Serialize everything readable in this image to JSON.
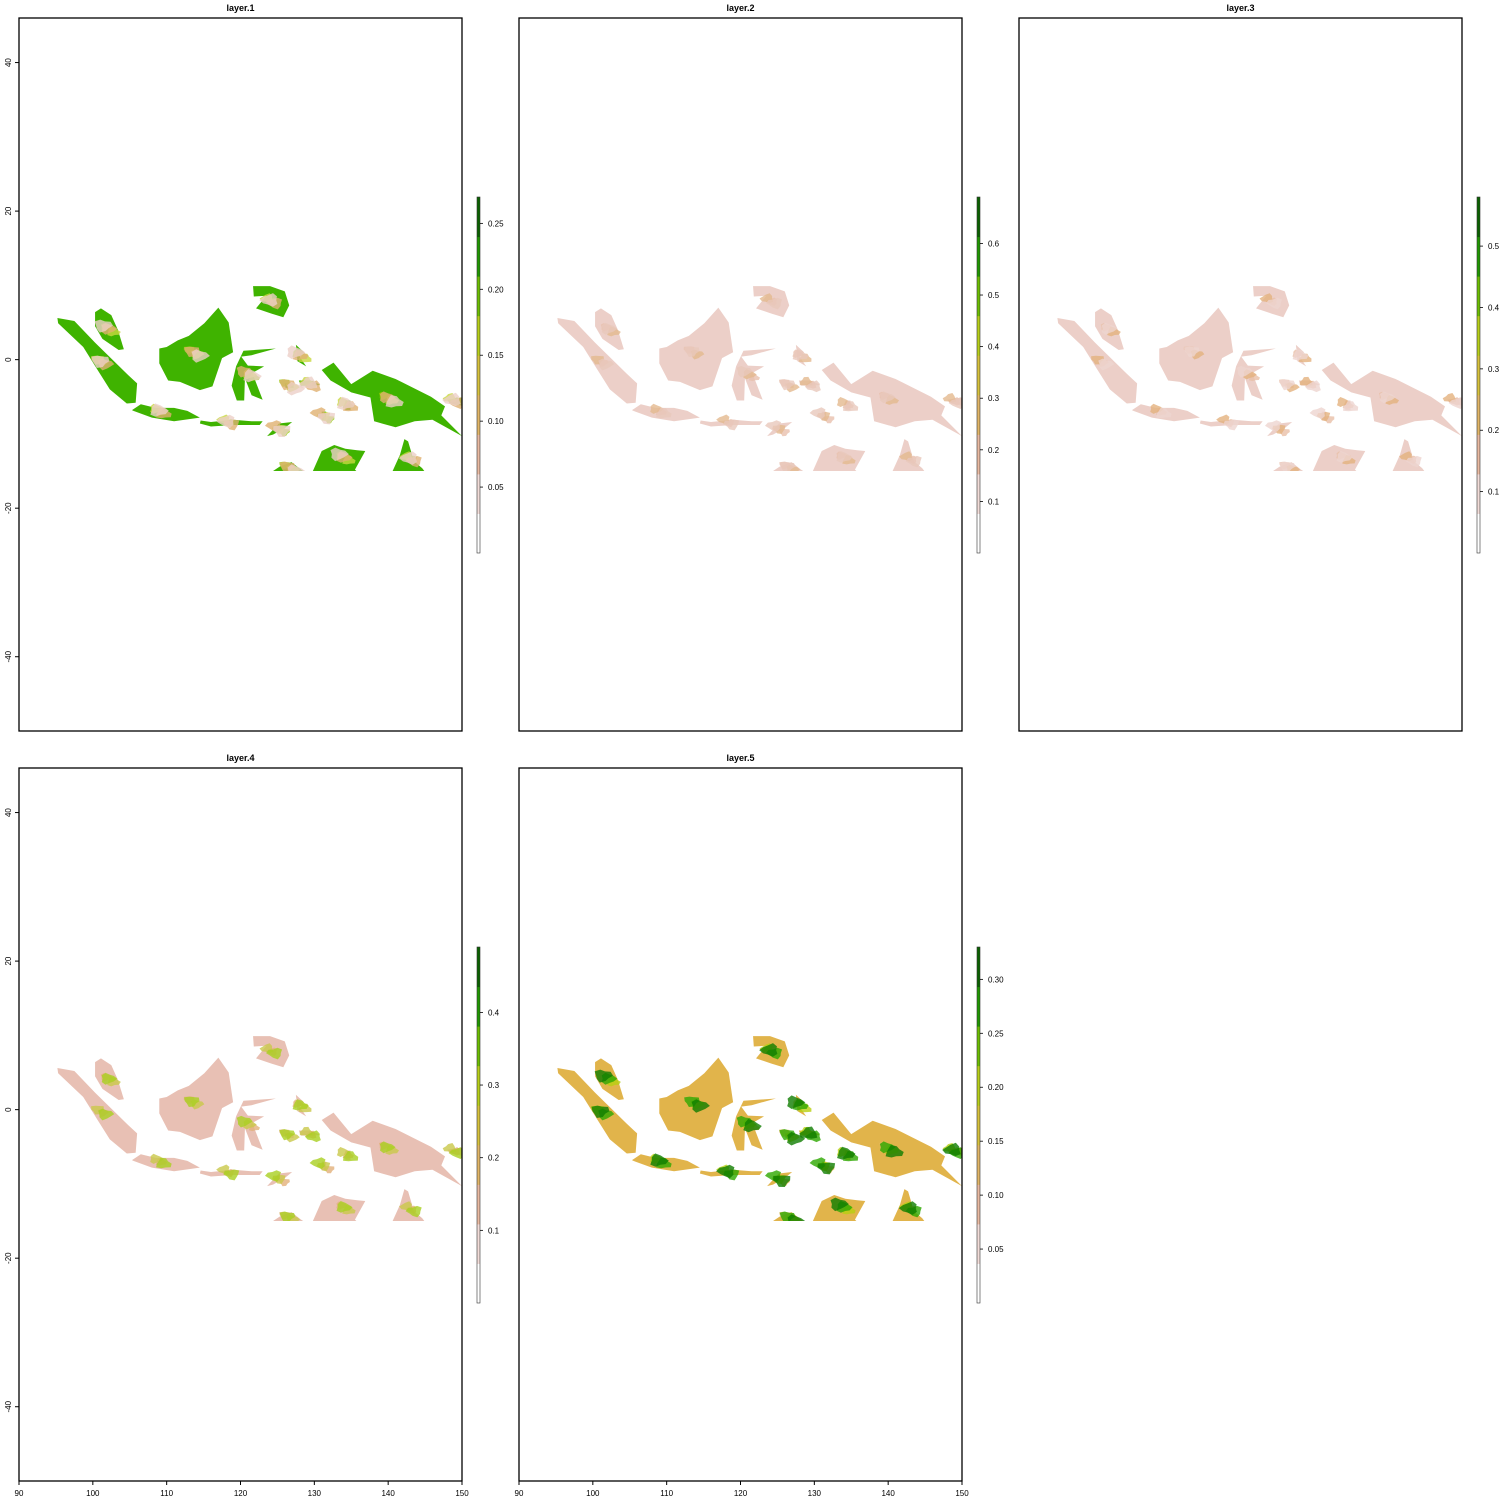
{
  "figure": {
    "x_ticks": [
      90,
      100,
      110,
      120,
      130,
      140,
      150
    ],
    "y_ticks": [
      40,
      20,
      0,
      -20,
      -40
    ],
    "xlim": [
      90,
      150
    ],
    "ylim": [
      -50,
      46
    ],
    "panels": [
      {
        "id": "p1",
        "title": "layer.1",
        "legend_max": 0.27,
        "legend_ticks": [
          0.05,
          0.1,
          0.15,
          0.2,
          0.25
        ],
        "legend_labels": [
          "0.05",
          "0.10",
          "0.15",
          "0.20",
          "0.25"
        ],
        "show_y_axis": true,
        "show_x_axis": false,
        "fill_colors": [
          "#3fb300",
          "#8fd000",
          "#c8d840",
          "#e0b070",
          "#eccfc8"
        ]
      },
      {
        "id": "p2",
        "title": "layer.2",
        "legend_max": 0.69,
        "legend_ticks": [
          0.1,
          0.2,
          0.3,
          0.4,
          0.5,
          0.6
        ],
        "legend_labels": [
          "0.1",
          "0.2",
          "0.3",
          "0.4",
          "0.5",
          "0.6"
        ],
        "show_y_axis": false,
        "show_x_axis": false,
        "fill_colors": [
          "#eccfc8",
          "#e8c0ae",
          "#e4b98f",
          "#e8c8bc"
        ]
      },
      {
        "id": "p3",
        "title": "layer.3",
        "legend_max": 0.58,
        "legend_ticks": [
          0.1,
          0.2,
          0.3,
          0.4,
          0.5
        ],
        "legend_labels": [
          "0.1",
          "0.2",
          "0.3",
          "0.4",
          "0.5"
        ],
        "show_y_axis": false,
        "show_x_axis": false,
        "fill_colors": [
          "#eccfc8",
          "#e8bfa8",
          "#e3b27e",
          "#edd5cf"
        ]
      },
      {
        "id": "p4",
        "title": "layer.4",
        "legend_max": 0.49,
        "legend_ticks": [
          0.1,
          0.2,
          0.3,
          0.4
        ],
        "legend_labels": [
          "0.1",
          "0.2",
          "0.3",
          "0.4"
        ],
        "show_y_axis": true,
        "show_x_axis": true,
        "fill_colors": [
          "#e8c0b4",
          "#e2b07a",
          "#c9c84a",
          "#a9d020"
        ]
      },
      {
        "id": "p5",
        "title": "layer.5",
        "legend_max": 0.33,
        "legend_ticks": [
          0.05,
          0.1,
          0.15,
          0.2,
          0.25,
          0.3
        ],
        "legend_labels": [
          "0.05",
          "0.10",
          "0.15",
          "0.20",
          "0.25",
          "0.30"
        ],
        "show_y_axis": false,
        "show_x_axis": true,
        "fill_colors": [
          "#e1b44b",
          "#e6b85a",
          "#b8cf10",
          "#2da800",
          "#0f7d00"
        ]
      }
    ],
    "legend_colors": [
      "#ffffff",
      "#f2dcd8",
      "#e9b9a0",
      "#e2b565",
      "#d7c23a",
      "#b7cf17",
      "#6bbe00",
      "#1e9700",
      "#0a6100"
    ]
  }
}
